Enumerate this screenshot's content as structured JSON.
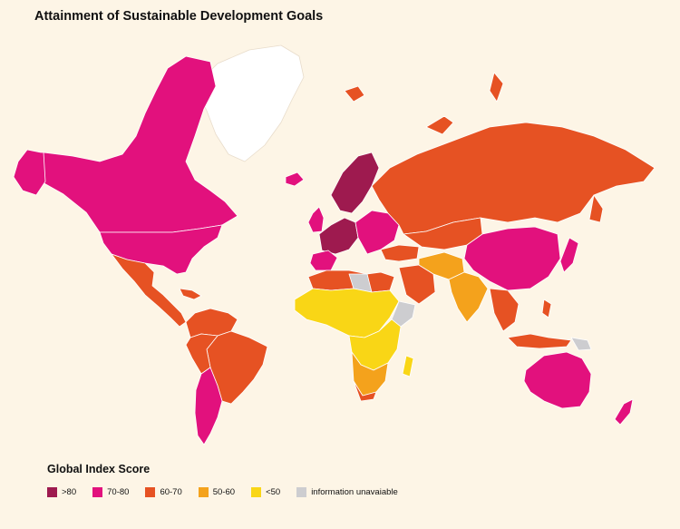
{
  "title": "Attainment of Sustainable Development Goals",
  "legend": {
    "title": "Global Index Score",
    "items": [
      {
        "label": ">80",
        "color": "#9e1a4f"
      },
      {
        "label": "70-80",
        "color": "#e2117d"
      },
      {
        "label": "60-70",
        "color": "#e65223"
      },
      {
        "label": "50-60",
        "color": "#f4a21c"
      },
      {
        "label": "<50",
        "color": "#f9d616"
      },
      {
        "label": "information unavaiable",
        "color": "#cdcdd0"
      }
    ]
  },
  "colors": {
    "background": "#fdf5e6",
    "greenland": "#ffffff",
    "border": "#ffffff"
  }
}
